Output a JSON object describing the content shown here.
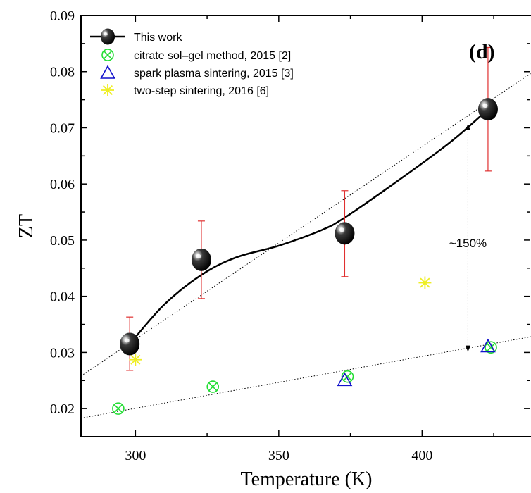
{
  "chart_data": {
    "type": "scatter",
    "xlabel": "Temperature (K)",
    "ylabel": "ZT",
    "xlim": [
      281,
      438
    ],
    "ylim": [
      0.015,
      0.09
    ],
    "x_ticks": [
      300,
      350,
      400
    ],
    "y_ticks": [
      0.02,
      0.03,
      0.04,
      0.05,
      0.06,
      0.07,
      0.08,
      0.09
    ],
    "x_tick_labels": [
      "300",
      "350",
      "400"
    ],
    "y_tick_labels": [
      "0.02",
      "0.03",
      "0.04",
      "0.05",
      "0.06",
      "0.07",
      "0.08",
      "0.09"
    ],
    "panel_label": "(d)",
    "legend_position": "top-left",
    "series": [
      {
        "name": "This work",
        "marker": "sphere",
        "color": "#000000",
        "x": [
          298,
          323,
          373,
          423
        ],
        "y": [
          0.0315,
          0.0465,
          0.0512,
          0.0733
        ],
        "yerr_low": [
          0.0268,
          0.0396,
          0.0435,
          0.0623
        ],
        "yerr_high": [
          0.0363,
          0.0534,
          0.0588,
          0.0843
        ],
        "fit_curve": {
          "x": [
            298,
            310,
            323,
            335,
            350,
            365,
            373,
            390,
            410,
            423
          ],
          "y": [
            0.0315,
            0.0385,
            0.0438,
            0.0469,
            0.049,
            0.0518,
            0.054,
            0.06,
            0.0675,
            0.0733
          ]
        }
      },
      {
        "name": "citrate sol–gel method, 2015 [2]",
        "marker": "circle-x",
        "color": "#22dd33",
        "x": [
          294,
          327,
          374,
          424
        ],
        "y": [
          0.02,
          0.0239,
          0.0257,
          0.0309
        ]
      },
      {
        "name": "spark plasma sintering, 2015 [3]",
        "marker": "triangle",
        "color": "#1111cc",
        "x": [
          373,
          423
        ],
        "y": [
          0.025,
          0.031
        ]
      },
      {
        "name": "two-step sintering, 2016 [6]",
        "marker": "asterisk",
        "color": "#eeee22",
        "x": [
          300,
          401
        ],
        "y": [
          0.0287,
          0.0424
        ]
      }
    ],
    "trend_lines": [
      {
        "x": [
          281,
          438
        ],
        "y": [
          0.0183,
          0.0328
        ]
      },
      {
        "x": [
          281,
          438
        ],
        "y": [
          0.0258,
          0.0797
        ]
      }
    ],
    "annotation": {
      "text": "~150%",
      "arrow_x": 416,
      "arrow_y": [
        0.0301,
        0.0707
      ],
      "label_y": 0.0495
    },
    "grid": false
  }
}
